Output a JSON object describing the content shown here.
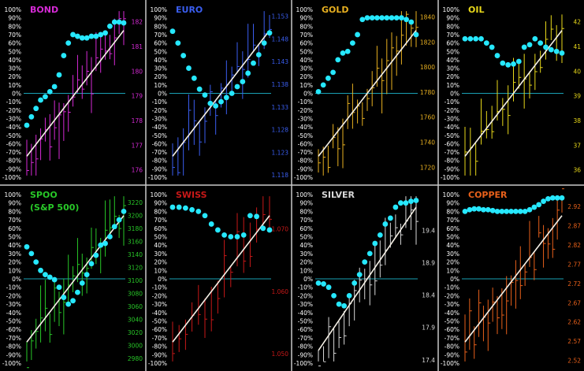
{
  "colors": {
    "background": "#000000",
    "divider": "#c8c8c8",
    "zero_line": "#19a0b4",
    "pct_line": "#26e8ff",
    "trend_line": "#f5f0e6",
    "pct_label": "#ffffff"
  },
  "chart_data": [
    {
      "type": "line",
      "title": "BOND",
      "subtitle": "",
      "color": "#d62ad6",
      "y_left_ticks": [
        "100%",
        "90%",
        "80%",
        "70%",
        "60%",
        "50%",
        "40%",
        "30%",
        "20%",
        "10%",
        "0%",
        "-10%",
        "-20%",
        "-30%",
        "-40%",
        "-50%",
        "-60%",
        "-70%",
        "-80%",
        "-90%",
        "-100%"
      ],
      "y_right_ticks": [
        "182",
        "181",
        "180",
        "179",
        "178",
        "177",
        "176"
      ],
      "y_right_range": [
        175.7,
        182.5
      ],
      "pct_series": [
        -38,
        -28,
        -18,
        -8,
        -4,
        2,
        8,
        22,
        45,
        60,
        70,
        68,
        66,
        66,
        68,
        68,
        70,
        72,
        80,
        85,
        85,
        84
      ]
    },
    {
      "type": "line",
      "title": "EURO",
      "subtitle": "",
      "color": "#3a5ef0",
      "y_left_ticks": [
        "100%",
        "90%",
        "80%",
        "70%",
        "60%",
        "50%",
        "40%",
        "30%",
        "20%",
        "10%",
        "0%",
        "-10%",
        "-20%",
        "-30%",
        "-40%",
        "-50%",
        "-60%",
        "-70%",
        "-80%",
        "-90%",
        "-100%"
      ],
      "y_right_ticks": [
        "1.153",
        "1.148",
        "1.143",
        "1.138",
        "1.133",
        "1.128",
        "1.123",
        "1.118"
      ],
      "y_right_range": [
        1.1175,
        1.1545
      ],
      "pct_series": [
        74,
        60,
        45,
        30,
        18,
        5,
        -2,
        -12,
        -15,
        -10,
        -5,
        0,
        8,
        14,
        24,
        36,
        46,
        60,
        72
      ]
    },
    {
      "type": "line",
      "title": "GOLD",
      "subtitle": "",
      "color": "#e8b020",
      "y_left_ticks": [
        "100%",
        "90%",
        "80%",
        "70%",
        "60%",
        "50%",
        "40%",
        "30%",
        "20%",
        "10%",
        "0%",
        "-10%",
        "-20%",
        "-30%",
        "-40%",
        "-50%",
        "-60%",
        "-70%",
        "-80%",
        "-90%",
        "-100%"
      ],
      "y_right_ticks": [
        "1840",
        "1820",
        "1800",
        "1780",
        "1760",
        "1740",
        "1720"
      ],
      "y_right_range": [
        1712,
        1846
      ],
      "pct_series": [
        2,
        10,
        18,
        25,
        40,
        48,
        50,
        60,
        70,
        88,
        90,
        90,
        90,
        90,
        90,
        90,
        90,
        90,
        88,
        85,
        70
      ]
    },
    {
      "type": "line",
      "title": "OIL",
      "subtitle": "",
      "color": "#e8d81a",
      "y_left_ticks": [
        "100%",
        "90%",
        "80%",
        "70%",
        "60%",
        "50%",
        "40%",
        "30%",
        "20%",
        "10%",
        "0%",
        "-10%",
        "-20%",
        "-30%",
        "-40%",
        "-50%",
        "-60%",
        "-70%",
        "-80%",
        "-90%",
        "-100%"
      ],
      "y_right_ticks": [
        "42",
        "41",
        "40",
        "39",
        "38",
        "37",
        "36"
      ],
      "y_right_range": [
        35.7,
        42.5
      ],
      "pct_series": [
        65,
        65,
        65,
        65,
        60,
        55,
        45,
        36,
        34,
        35,
        38,
        55,
        58,
        65,
        60,
        55,
        52,
        50,
        48
      ]
    },
    {
      "type": "line",
      "title": "SPOO",
      "subtitle": "(S&P 500)",
      "color": "#28c828",
      "y_left_ticks": [
        "100%",
        "90%",
        "80%",
        "70%",
        "60%",
        "50%",
        "40%",
        "30%",
        "20%",
        "10%",
        "0%",
        "-10%",
        "-20%",
        "-30%",
        "-40%",
        "-50%",
        "-60%",
        "-70%",
        "-80%",
        "-90%",
        "-100%"
      ],
      "y_right_ticks": [
        "3220",
        "3200",
        "3180",
        "3160",
        "3140",
        "3120",
        "3100",
        "3080",
        "3060",
        "3040",
        "3020",
        "3000",
        "2980"
      ],
      "y_right_range": [
        2973,
        3232
      ],
      "pct_series": [
        38,
        30,
        20,
        10,
        5,
        2,
        -1,
        -10,
        -22,
        -30,
        -26,
        -16,
        -5,
        5,
        18,
        28,
        40,
        42,
        50,
        62,
        70,
        80
      ]
    },
    {
      "type": "line",
      "title": "SWISS",
      "subtitle": "",
      "color": "#c81818",
      "y_left_ticks": [
        "100%",
        "90%",
        "80%",
        "70%",
        "60%",
        "50%",
        "40%",
        "30%",
        "20%",
        "10%",
        "0%",
        "-10%",
        "-20%",
        "-30%",
        "-40%",
        "-50%",
        "-60%",
        "-70%",
        "-80%",
        "-90%",
        "-100%"
      ],
      "y_right_ticks": [
        "1.070",
        "1.060",
        "1.050"
      ],
      "y_right_range": [
        1.0485,
        1.0755
      ],
      "pct_series": [
        85,
        85,
        84,
        82,
        80,
        75,
        65,
        58,
        52,
        50,
        50,
        52,
        75,
        74,
        60,
        58
      ]
    },
    {
      "type": "line",
      "title": "SILVER",
      "subtitle": "",
      "color": "#d8d8d8",
      "y_left_ticks": [
        "100%",
        "90%",
        "80%",
        "70%",
        "60%",
        "50%",
        "40%",
        "30%",
        "20%",
        "10%",
        "0%",
        "-10%",
        "-20%",
        "-30%",
        "-40%",
        "-50%",
        "-60%",
        "-70%",
        "-80%",
        "-90%",
        "-100%"
      ],
      "y_right_ticks": [
        "19.4",
        "18.9",
        "18.4",
        "17.9",
        "17.4"
      ],
      "y_right_range": [
        17.35,
        19.95
      ],
      "pct_series": [
        -5,
        -6,
        -10,
        -20,
        -30,
        -32,
        -20,
        -5,
        5,
        20,
        30,
        42,
        52,
        65,
        72,
        85,
        90,
        90,
        92,
        93
      ]
    },
    {
      "type": "line",
      "title": "COPPER",
      "subtitle": "",
      "color": "#e8601a",
      "y_left_ticks": [
        "100%",
        "90%",
        "80%",
        "70%",
        "60%",
        "50%",
        "40%",
        "30%",
        "20%",
        "10%",
        "0%",
        "-10%",
        "-20%",
        "-30%",
        "-40%",
        "-50%",
        "-60%",
        "-70%",
        "-80%",
        "-90%",
        "-100%"
      ],
      "y_right_ticks": [
        "2.92",
        "2.87",
        "2.82",
        "2.77",
        "2.72",
        "2.67",
        "2.62",
        "2.57",
        "2.52"
      ],
      "y_right_range": [
        2.513,
        2.951
      ],
      "pct_series": [
        80,
        82,
        83,
        83,
        82,
        82,
        81,
        80,
        80,
        80,
        80,
        80,
        80,
        80,
        82,
        85,
        88,
        92,
        95,
        96,
        96,
        96
      ]
    }
  ]
}
